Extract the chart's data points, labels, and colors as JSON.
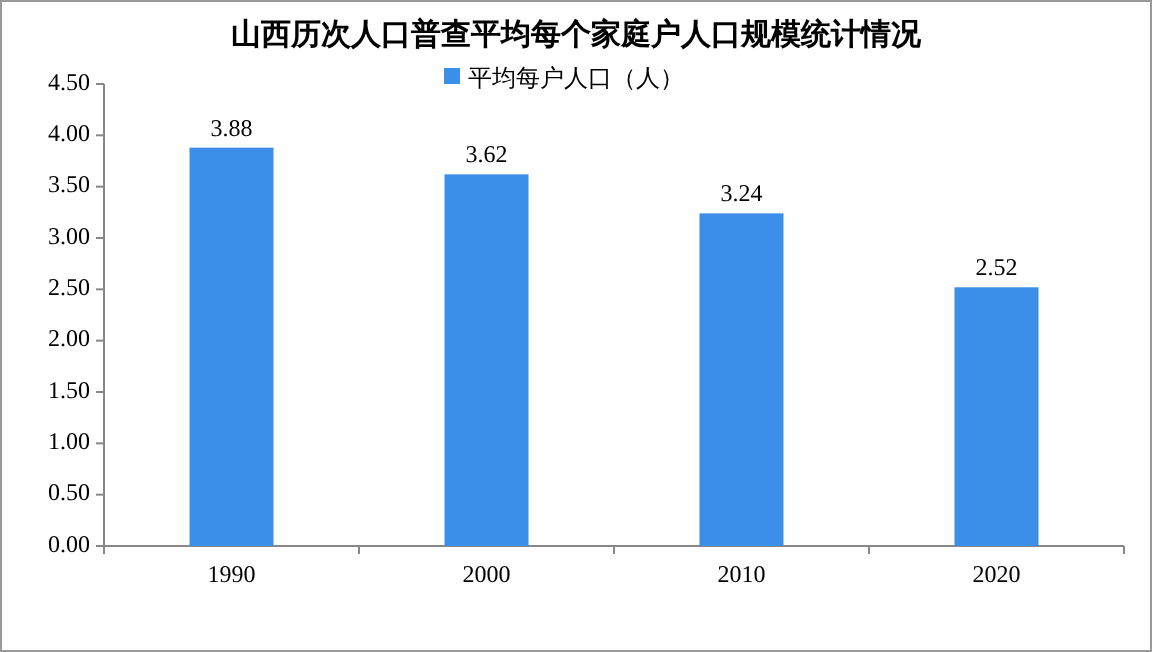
{
  "chart_data": {
    "type": "bar",
    "title": "山西历次人口普查平均每个家庭户人口规模统计情况",
    "categories": [
      "1990",
      "2000",
      "2010",
      "2020"
    ],
    "series": [
      {
        "name": "平均每户人口（人）",
        "color": "#3c8fe8",
        "values": [
          3.88,
          3.62,
          3.24,
          2.52
        ]
      }
    ],
    "ylim": [
      0,
      4.5
    ],
    "yticks": [
      {
        "value": 0,
        "label": "0.00"
      },
      {
        "value": 0.5,
        "label": "0.50"
      },
      {
        "value": 1,
        "label": "1.00"
      },
      {
        "value": 1.5,
        "label": "1.50"
      },
      {
        "value": 2,
        "label": "2.00"
      },
      {
        "value": 2.5,
        "label": "2.50"
      },
      {
        "value": 3,
        "label": "3.00"
      },
      {
        "value": 3.5,
        "label": "3.50"
      },
      {
        "value": 4,
        "label": "4.00"
      },
      {
        "value": 4.5,
        "label": "4.50"
      }
    ],
    "data_labels": true,
    "legend": "top",
    "grid": false
  }
}
